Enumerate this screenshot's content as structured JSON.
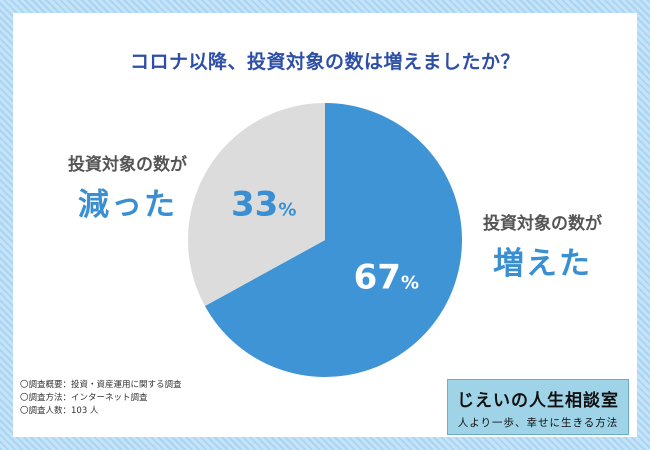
{
  "title": "コロナ以降、投資対象の数は増えましたか？",
  "chart_data": {
    "type": "pie",
    "slices": [
      {
        "label_small": "投資対象の数が",
        "label_big": "増えた",
        "value": 67,
        "value_text": "67",
        "color": "#3f94d6"
      },
      {
        "label_small": "投資対象の数が",
        "label_big": "減った",
        "value": 33,
        "value_text": "33",
        "color": "#dcdcdc"
      }
    ],
    "unit": "%",
    "value_colors": {
      "on_blue": "#ffffff",
      "on_grey": "#3a8fd2"
    }
  },
  "notes": [
    "〇調査概要：投資・資産運用に関する調査",
    "〇調査方法：インターネット調査",
    "〇調査人数：103 人"
  ],
  "badge": {
    "line1": "じえいの人生相談室",
    "line2": "人より一歩、幸せに生きる方法"
  }
}
